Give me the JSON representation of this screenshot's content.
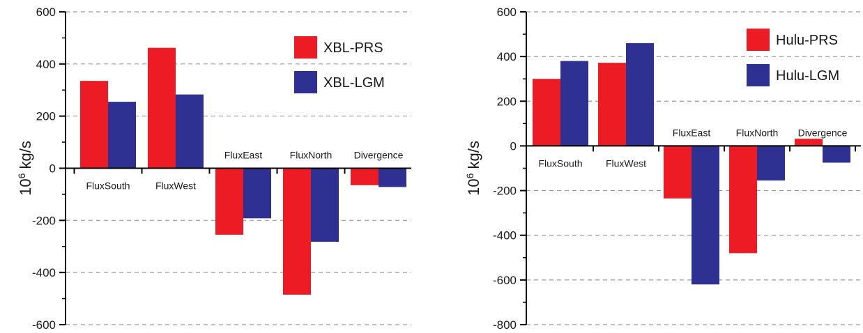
{
  "chart_data": [
    {
      "type": "bar",
      "categories": [
        "FluxSouth",
        "FluxWest",
        "FluxEast",
        "FluxNorth",
        "Divergence"
      ],
      "series": [
        {
          "name": "XBL-PRS",
          "color": "#ed1c24",
          "values": [
            335,
            462,
            -255,
            -485,
            -65
          ]
        },
        {
          "name": "XBL-LGM",
          "color": "#2e3192",
          "values": [
            255,
            283,
            -192,
            -282,
            -72
          ]
        }
      ],
      "ylabel_main": "10",
      "ylabel_sup": "6",
      "ylabel_rest": " kg/s",
      "ylim": [
        -600,
        600
      ],
      "ytick_values": [
        -600,
        -400,
        -200,
        0,
        200,
        400,
        600
      ],
      "ytick_labels": [
        "-600",
        "-400",
        "-200",
        "0",
        "200",
        "400",
        "600"
      ],
      "grid": "dashed horizontal at major ticks",
      "legend_position": "top-right"
    },
    {
      "type": "bar",
      "categories": [
        "FluxSouth",
        "FluxWest",
        "FluxEast",
        "FluxNorth",
        "Divergence"
      ],
      "series": [
        {
          "name": "Hulu-PRS",
          "color": "#ed1c24",
          "values": [
            300,
            372,
            -235,
            -480,
            32
          ]
        },
        {
          "name": "Hulu-LGM",
          "color": "#2e3192",
          "values": [
            380,
            460,
            -620,
            -155,
            -75
          ]
        }
      ],
      "ylabel_main": "10",
      "ylabel_sup": "6",
      "ylabel_rest": " kg/s",
      "ylim": [
        -800,
        600
      ],
      "ytick_values": [
        -800,
        -600,
        -400,
        -200,
        0,
        200,
        400,
        600
      ],
      "ytick_labels": [
        "-800",
        "-600",
        "-400",
        "-200",
        "0",
        "200",
        "400",
        "600"
      ],
      "grid": "dashed horizontal at major ticks",
      "legend_position": "top-right"
    }
  ]
}
